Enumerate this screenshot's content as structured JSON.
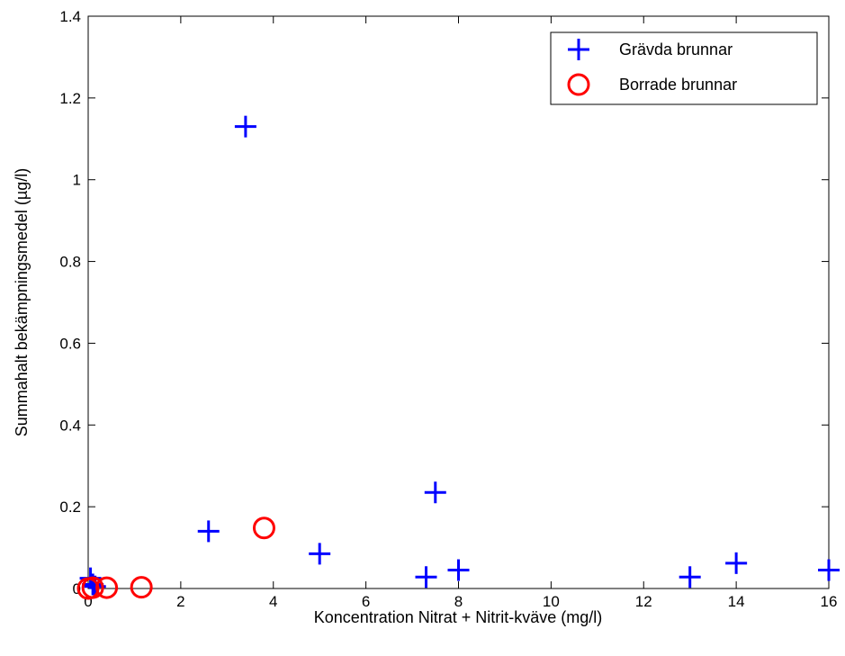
{
  "chart_data": {
    "type": "scatter",
    "title": "",
    "xlabel": "Koncentration Nitrat + Nitrit-kväve (mg/l)",
    "ylabel": "Summahalt bekämpningsmedel (µg/l)",
    "xlim": [
      0,
      16
    ],
    "ylim": [
      0,
      1.4
    ],
    "xticks": [
      0,
      2,
      4,
      6,
      8,
      10,
      12,
      14,
      16
    ],
    "yticks": [
      0,
      0.2,
      0.4,
      0.6,
      0.8,
      1,
      1.2,
      1.4
    ],
    "xtick_labels": [
      "0",
      "2",
      "4",
      "6",
      "8",
      "10",
      "12",
      "14",
      "16"
    ],
    "ytick_labels": [
      "0",
      "0.2",
      "0.4",
      "0.6",
      "0.8",
      "1",
      "1.2",
      "1.4"
    ],
    "grid": false,
    "legend_position": "top-right",
    "series": [
      {
        "name": "Grävda brunnar",
        "marker": "plus",
        "color": "#0000ff",
        "points": [
          [
            0.05,
            0.025
          ],
          [
            0.1,
            0.01
          ],
          [
            0.15,
            0.005
          ],
          [
            2.6,
            0.14
          ],
          [
            3.4,
            1.13
          ],
          [
            5.0,
            0.085
          ],
          [
            7.3,
            0.028
          ],
          [
            7.5,
            0.235
          ],
          [
            8.0,
            0.045
          ],
          [
            13.0,
            0.028
          ],
          [
            14.0,
            0.062
          ],
          [
            16.0,
            0.045
          ]
        ]
      },
      {
        "name": "Borrade brunnar",
        "marker": "circle",
        "color": "#ff0000",
        "points": [
          [
            0.0,
            0.0
          ],
          [
            0.1,
            0.002
          ],
          [
            0.4,
            0.002
          ],
          [
            1.15,
            0.003
          ],
          [
            3.8,
            0.148
          ]
        ]
      }
    ]
  }
}
